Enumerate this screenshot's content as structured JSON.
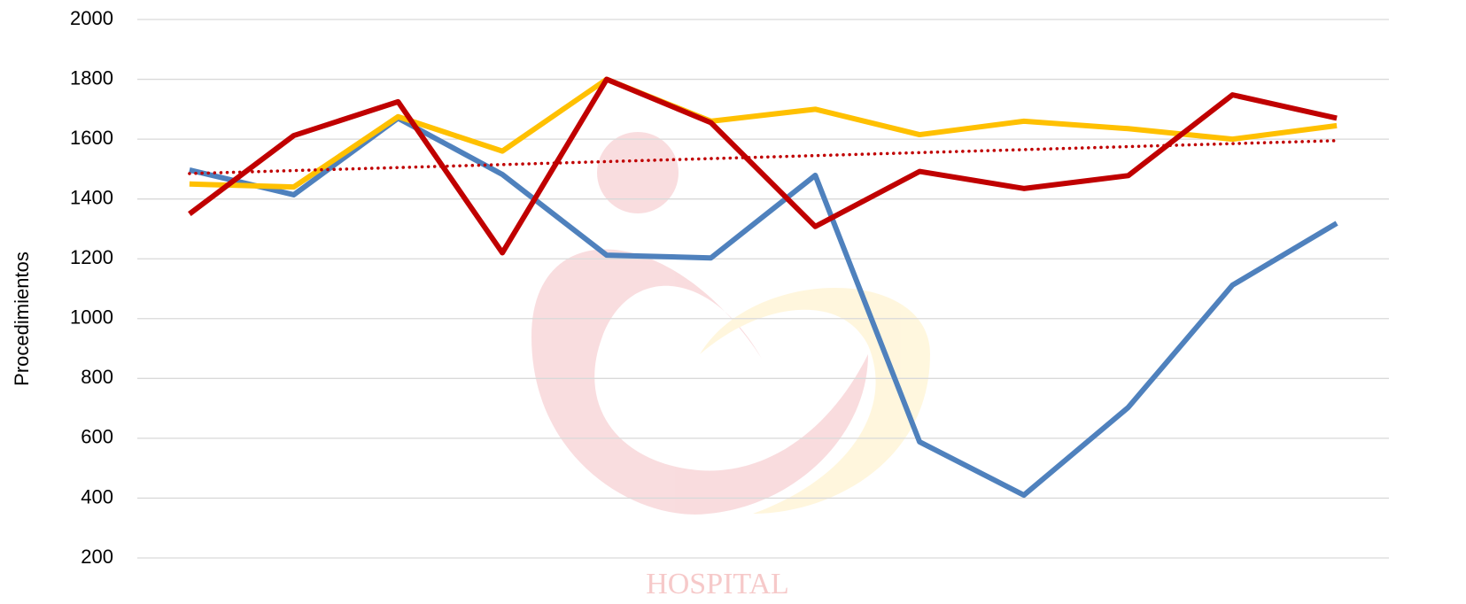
{
  "chart_data": {
    "type": "line",
    "ylabel": "Procedimientos",
    "watermark": "HOSPITAL",
    "categories": [
      null,
      null,
      null,
      null,
      null,
      null,
      null,
      null,
      null,
      null,
      null,
      null
    ],
    "series": [
      {
        "color": "#4f81bd",
        "values": [
          1497,
          1414,
          1670,
          1482,
          1212,
          1203,
          1479,
          588,
          410,
          703,
          1112,
          1319
        ]
      },
      {
        "color": "#ffc000",
        "values": [
          1450,
          1440,
          1675,
          1560,
          1800,
          1660,
          1700,
          1615,
          1660,
          1635,
          1600,
          1645
        ]
      },
      {
        "color": "#c00000",
        "values": [
          1350,
          1612,
          1725,
          1220,
          1800,
          1655,
          1308,
          1492,
          1435,
          1478,
          1748,
          1670
        ]
      },
      {
        "color": "#c00000",
        "dash": "dotted",
        "values": [
          1485,
          1495,
          1505,
          1515,
          1525,
          1535,
          1545,
          1555,
          1565,
          1575,
          1585,
          1595
        ]
      }
    ],
    "ylim": [
      200,
      2000
    ],
    "yticks": [
      200,
      400,
      600,
      800,
      1000,
      1200,
      1400,
      1600,
      1800,
      2000
    ],
    "grid": true
  }
}
